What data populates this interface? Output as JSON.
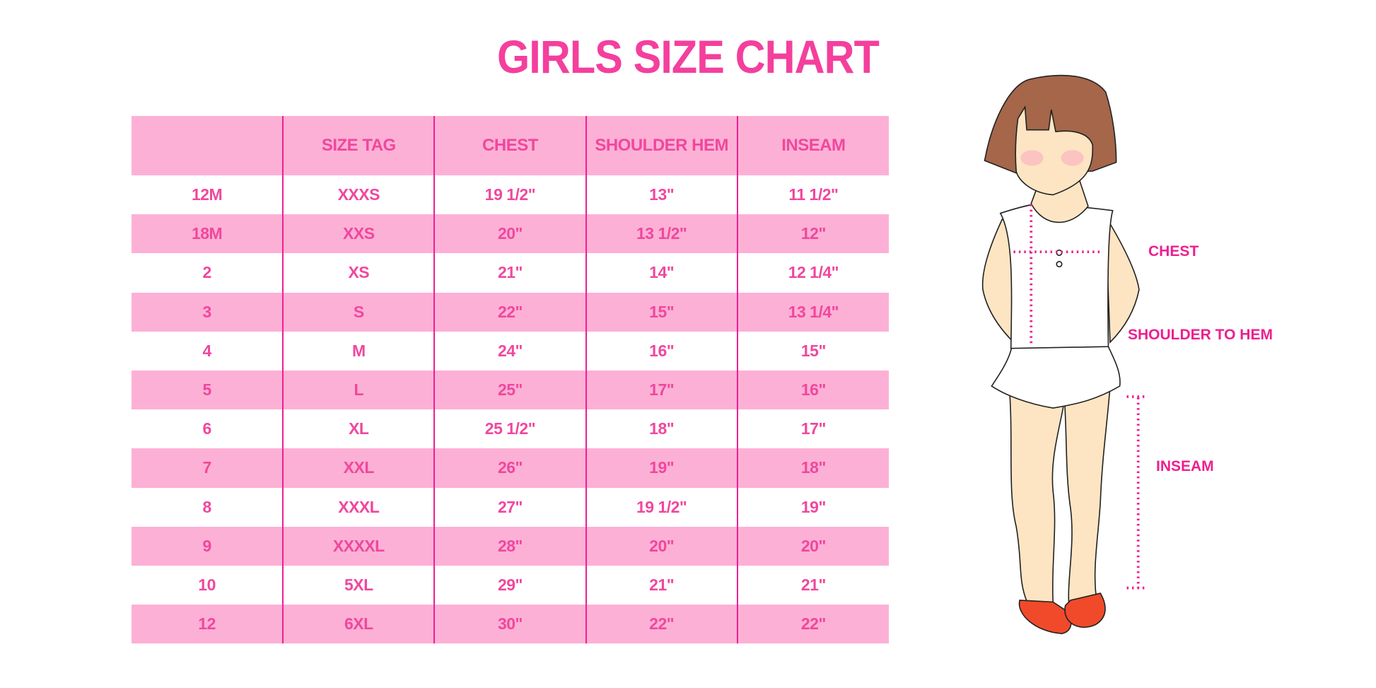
{
  "title": "GIRLS SIZE CHART",
  "table": {
    "headers": [
      "",
      "SIZE TAG",
      "CHEST",
      "SHOULDER HEM",
      "INSEAM"
    ],
    "rows": [
      [
        "12M",
        "XXXS",
        "19 1/2\"",
        "13\"",
        "11 1/2\""
      ],
      [
        "18M",
        "XXS",
        "20\"",
        "13 1/2\"",
        "12\""
      ],
      [
        "2",
        "XS",
        "21\"",
        "14\"",
        "12 1/4\""
      ],
      [
        "3",
        "S",
        "22\"",
        "15\"",
        "13 1/4\""
      ],
      [
        "4",
        "M",
        "24\"",
        "16\"",
        "15\""
      ],
      [
        "5",
        "L",
        "25\"",
        "17\"",
        "16\""
      ],
      [
        "6",
        "XL",
        "25 1/2\"",
        "18\"",
        "17\""
      ],
      [
        "7",
        "XXL",
        "26\"",
        "19\"",
        "18\""
      ],
      [
        "8",
        "XXXL",
        "27\"",
        "19 1/2\"",
        "19\""
      ],
      [
        "9",
        "XXXXL",
        "28\"",
        "20\"",
        "20\""
      ],
      [
        "10",
        "5XL",
        "29\"",
        "21\"",
        "21\""
      ],
      [
        "12",
        "6XL",
        "30\"",
        "22\"",
        "22\""
      ]
    ]
  },
  "figure": {
    "labels": {
      "chest": "CHEST",
      "shoulder_to_hem": "SHOULDER TO HEM",
      "inseam": "INSEAM"
    }
  },
  "colors": {
    "accent": "#f43f9d",
    "row_fill": "#fdb0d5",
    "divider": "#ee1f93",
    "hair": "#a5664a",
    "skin": "#fde5c3",
    "shoes": "#f04a2a"
  }
}
